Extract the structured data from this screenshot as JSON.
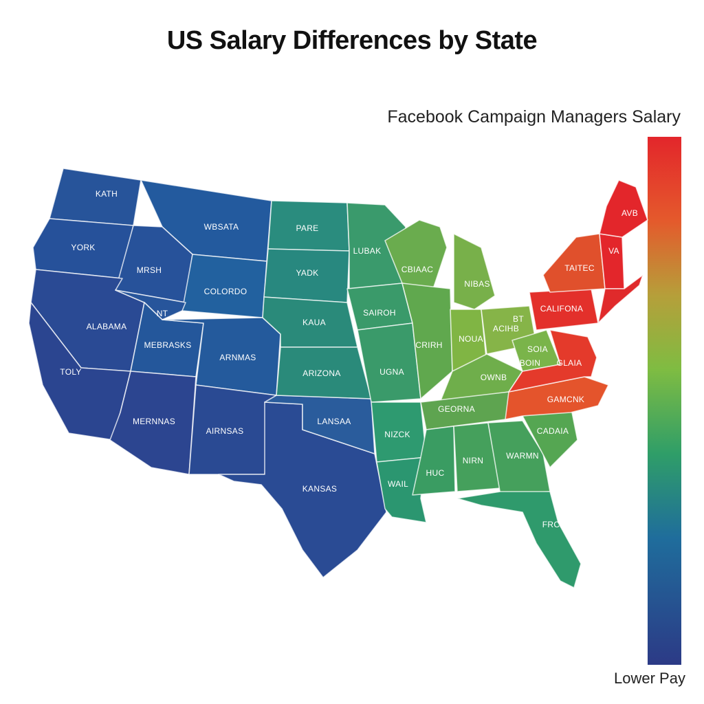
{
  "title": "US Salary Differences by State",
  "legend": {
    "title": "Facebook Campaign Managers Salary",
    "low_label": "Lower Pay",
    "high_color": "#e3262b",
    "low_color": "#2c3a86"
  },
  "states": [
    {
      "label": "KATH",
      "color": "#27549a"
    },
    {
      "label": "YORK",
      "color": "#26519a"
    },
    {
      "label": "WBSATA",
      "color": "#235a9e"
    },
    {
      "label": "MRSH",
      "color": "#27529a"
    },
    {
      "label": "COLORDO",
      "color": "#22619f"
    },
    {
      "label": "ALABAMA",
      "color": "#2a4a94"
    },
    {
      "label": "NT",
      "color": "#27559b"
    },
    {
      "label": "MEBRASKS",
      "color": "#24579b"
    },
    {
      "label": "ARNMAS",
      "color": "#245a9c"
    },
    {
      "label": "TOLY",
      "color": "#2b4590"
    },
    {
      "label": "MERNNAS",
      "color": "#2c4590"
    },
    {
      "label": "AIRNSAS",
      "color": "#2a4a93"
    },
    {
      "label": "KANSAS",
      "color": "#2a4b94"
    },
    {
      "label": "LANSAA",
      "color": "#2a5c9c"
    },
    {
      "label": "PARE",
      "color": "#2a8c7e"
    },
    {
      "label": "YADK",
      "color": "#28887f"
    },
    {
      "label": "KAUA",
      "color": "#2a8a7a"
    },
    {
      "label": "ARIZONA",
      "color": "#2a8a7a"
    },
    {
      "label": "LUBAK",
      "color": "#3a9a6c"
    },
    {
      "label": "SAIROH",
      "color": "#3a9a6a"
    },
    {
      "label": "UGNA",
      "color": "#3a9a6a"
    },
    {
      "label": "NIZCK",
      "color": "#2e9a70"
    },
    {
      "label": "WAIL",
      "color": "#2b9670"
    },
    {
      "label": "CBIAAC",
      "color": "#6aac4e"
    },
    {
      "label": "NIBAS",
      "color": "#78b04a"
    },
    {
      "label": "CRIRH",
      "color": "#60a84e"
    },
    {
      "label": "NOUA",
      "color": "#80b544"
    },
    {
      "label": "ACIHB",
      "color": "#86b448"
    },
    {
      "label": "BT",
      "color": "#86b448"
    },
    {
      "label": "SOIA",
      "color": "#7ab44a"
    },
    {
      "label": "BOIN",
      "color": "#7ab44a"
    },
    {
      "label": "OWNB",
      "color": "#6fae4b"
    },
    {
      "label": "GEORNA",
      "color": "#5ea450"
    },
    {
      "label": "HUC",
      "color": "#3a9c62"
    },
    {
      "label": "NIRN",
      "color": "#45a05c"
    },
    {
      "label": "WARMN",
      "color": "#45a05c"
    },
    {
      "label": "CADAIA",
      "color": "#55a652"
    },
    {
      "label": "FRCH",
      "color": "#2f9a6c"
    },
    {
      "label": "GAMCNK",
      "color": "#e4542c"
    },
    {
      "label": "GLAIA",
      "color": "#e43a2b"
    },
    {
      "label": "CALIFONA",
      "color": "#e3302b"
    },
    {
      "label": "TAITEC",
      "color": "#e0502c"
    },
    {
      "label": "AVB",
      "color": "#e3262b"
    },
    {
      "label": "VA",
      "color": "#e3262b"
    }
  ]
}
